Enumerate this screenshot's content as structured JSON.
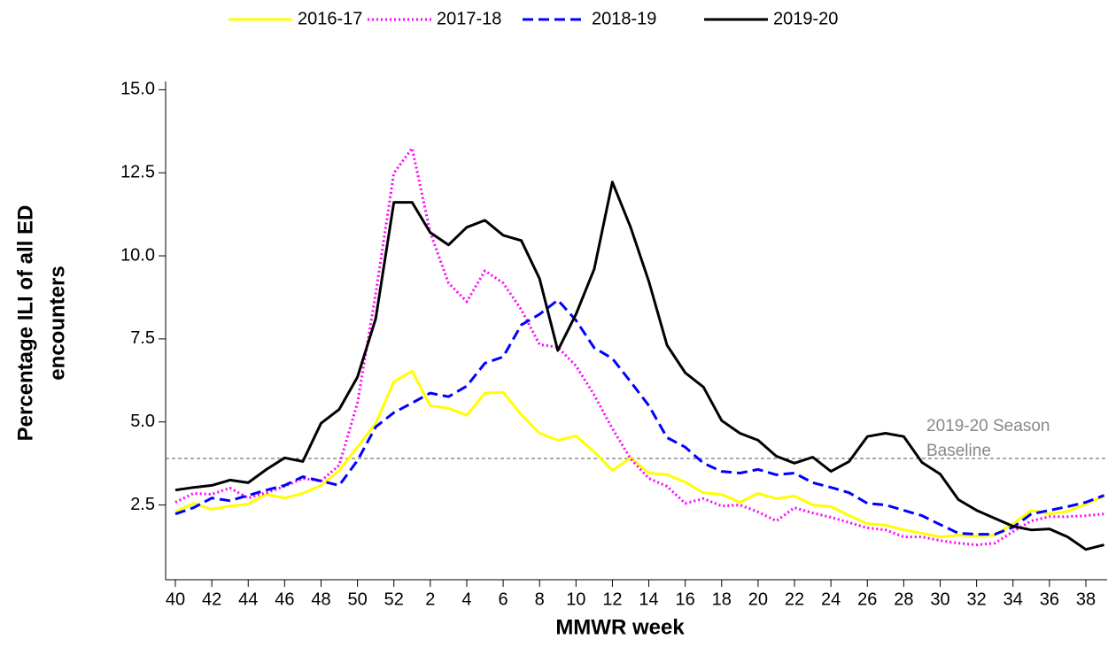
{
  "chart_data": {
    "type": "line",
    "categories": [
      "40",
      null,
      "42",
      null,
      "44",
      null,
      "46",
      null,
      "48",
      null,
      "50",
      null,
      "52",
      null,
      "2",
      null,
      "4",
      null,
      "6",
      null,
      "8",
      null,
      "10",
      null,
      "12",
      null,
      "14",
      null,
      "16",
      null,
      "18",
      null,
      "20",
      null,
      "22",
      null,
      "24",
      null,
      "26",
      null,
      "28",
      null,
      "30",
      null,
      "32",
      null,
      "34",
      null,
      "36",
      null,
      "38",
      null
    ],
    "series": [
      {
        "name": "2016-17",
        "color": "#ffff00",
        "dash": "solid",
        "values": [
          2.29,
          2.55,
          2.37,
          2.47,
          2.53,
          2.82,
          2.71,
          2.85,
          3.09,
          3.54,
          4.24,
          4.96,
          6.21,
          6.53,
          5.49,
          5.41,
          5.2,
          5.87,
          5.89,
          5.22,
          4.66,
          4.45,
          4.58,
          4.1,
          3.54,
          3.92,
          3.46,
          3.41,
          3.19,
          2.87,
          2.82,
          2.58,
          2.85,
          2.69,
          2.77,
          2.5,
          2.45,
          2.18,
          1.94,
          1.89,
          1.75,
          1.65,
          1.54,
          1.59,
          1.57,
          1.59,
          1.94,
          2.34,
          2.23,
          2.31,
          2.53,
          2.77
        ]
      },
      {
        "name": "2017-18",
        "color": "#ff00ff",
        "dash": "dotted",
        "values": [
          2.58,
          2.85,
          2.82,
          3.01,
          2.71,
          2.87,
          3.06,
          3.3,
          3.22,
          3.7,
          5.57,
          8.86,
          12.49,
          13.24,
          10.7,
          9.18,
          8.62,
          9.55,
          9.18,
          8.38,
          7.33,
          7.25,
          6.69,
          5.81,
          4.8,
          3.89,
          3.3,
          3.06,
          2.55,
          2.69,
          2.47,
          2.5,
          2.29,
          2.02,
          2.42,
          2.26,
          2.13,
          1.97,
          1.81,
          1.75,
          1.54,
          1.54,
          1.43,
          1.35,
          1.3,
          1.35,
          1.7,
          2.02,
          2.15,
          2.15,
          2.18,
          2.23
        ]
      },
      {
        "name": "2018-19",
        "color": "#0000ff",
        "dash": "dashed",
        "values": [
          2.23,
          2.42,
          2.71,
          2.63,
          2.79,
          2.95,
          3.09,
          3.35,
          3.22,
          3.09,
          3.84,
          4.85,
          5.28,
          5.57,
          5.87,
          5.76,
          6.08,
          6.77,
          6.96,
          7.92,
          8.24,
          8.67,
          8.06,
          7.23,
          6.91,
          6.21,
          5.49,
          4.53,
          4.24,
          3.76,
          3.51,
          3.46,
          3.57,
          3.41,
          3.46,
          3.17,
          3.03,
          2.87,
          2.55,
          2.5,
          2.34,
          2.18,
          1.91,
          1.65,
          1.62,
          1.62,
          1.83,
          2.23,
          2.34,
          2.45,
          2.58,
          2.79
        ]
      },
      {
        "name": "2019-20",
        "color": "#000000",
        "dash": "solid",
        "values": [
          2.95,
          3.03,
          3.09,
          3.25,
          3.17,
          3.57,
          3.92,
          3.81,
          4.96,
          5.38,
          6.35,
          8.11,
          11.61,
          11.61,
          10.7,
          10.33,
          10.86,
          11.07,
          10.62,
          10.46,
          9.31,
          7.15,
          8.24,
          9.6,
          12.22,
          10.86,
          9.23,
          7.31,
          6.48,
          6.05,
          5.04,
          4.66,
          4.45,
          3.97,
          3.76,
          3.94,
          3.51,
          3.81,
          4.56,
          4.66,
          4.56,
          3.78,
          3.43,
          2.66,
          2.34,
          2.1,
          1.86,
          1.75,
          1.78,
          1.54,
          1.16,
          1.3
        ]
      }
    ],
    "ylim": [
      0.25,
      15.25
    ],
    "yticks": [
      {
        "value": 2.5,
        "label": "2.5"
      },
      {
        "value": 5,
        "label": "5.0"
      },
      {
        "value": 7.5,
        "label": "7.5"
      },
      {
        "value": 10,
        "label": "10.0"
      },
      {
        "value": 12.5,
        "label": "12.5"
      },
      {
        "value": 15,
        "label": "15.0"
      }
    ],
    "xlabel": "MMWR week",
    "ylabel": [
      "Percentage ILI of all ED",
      "encounters"
    ],
    "baseline": {
      "value": 3.9,
      "label": [
        "2019-20 Season",
        "Baseline"
      ]
    },
    "legend": "top"
  }
}
